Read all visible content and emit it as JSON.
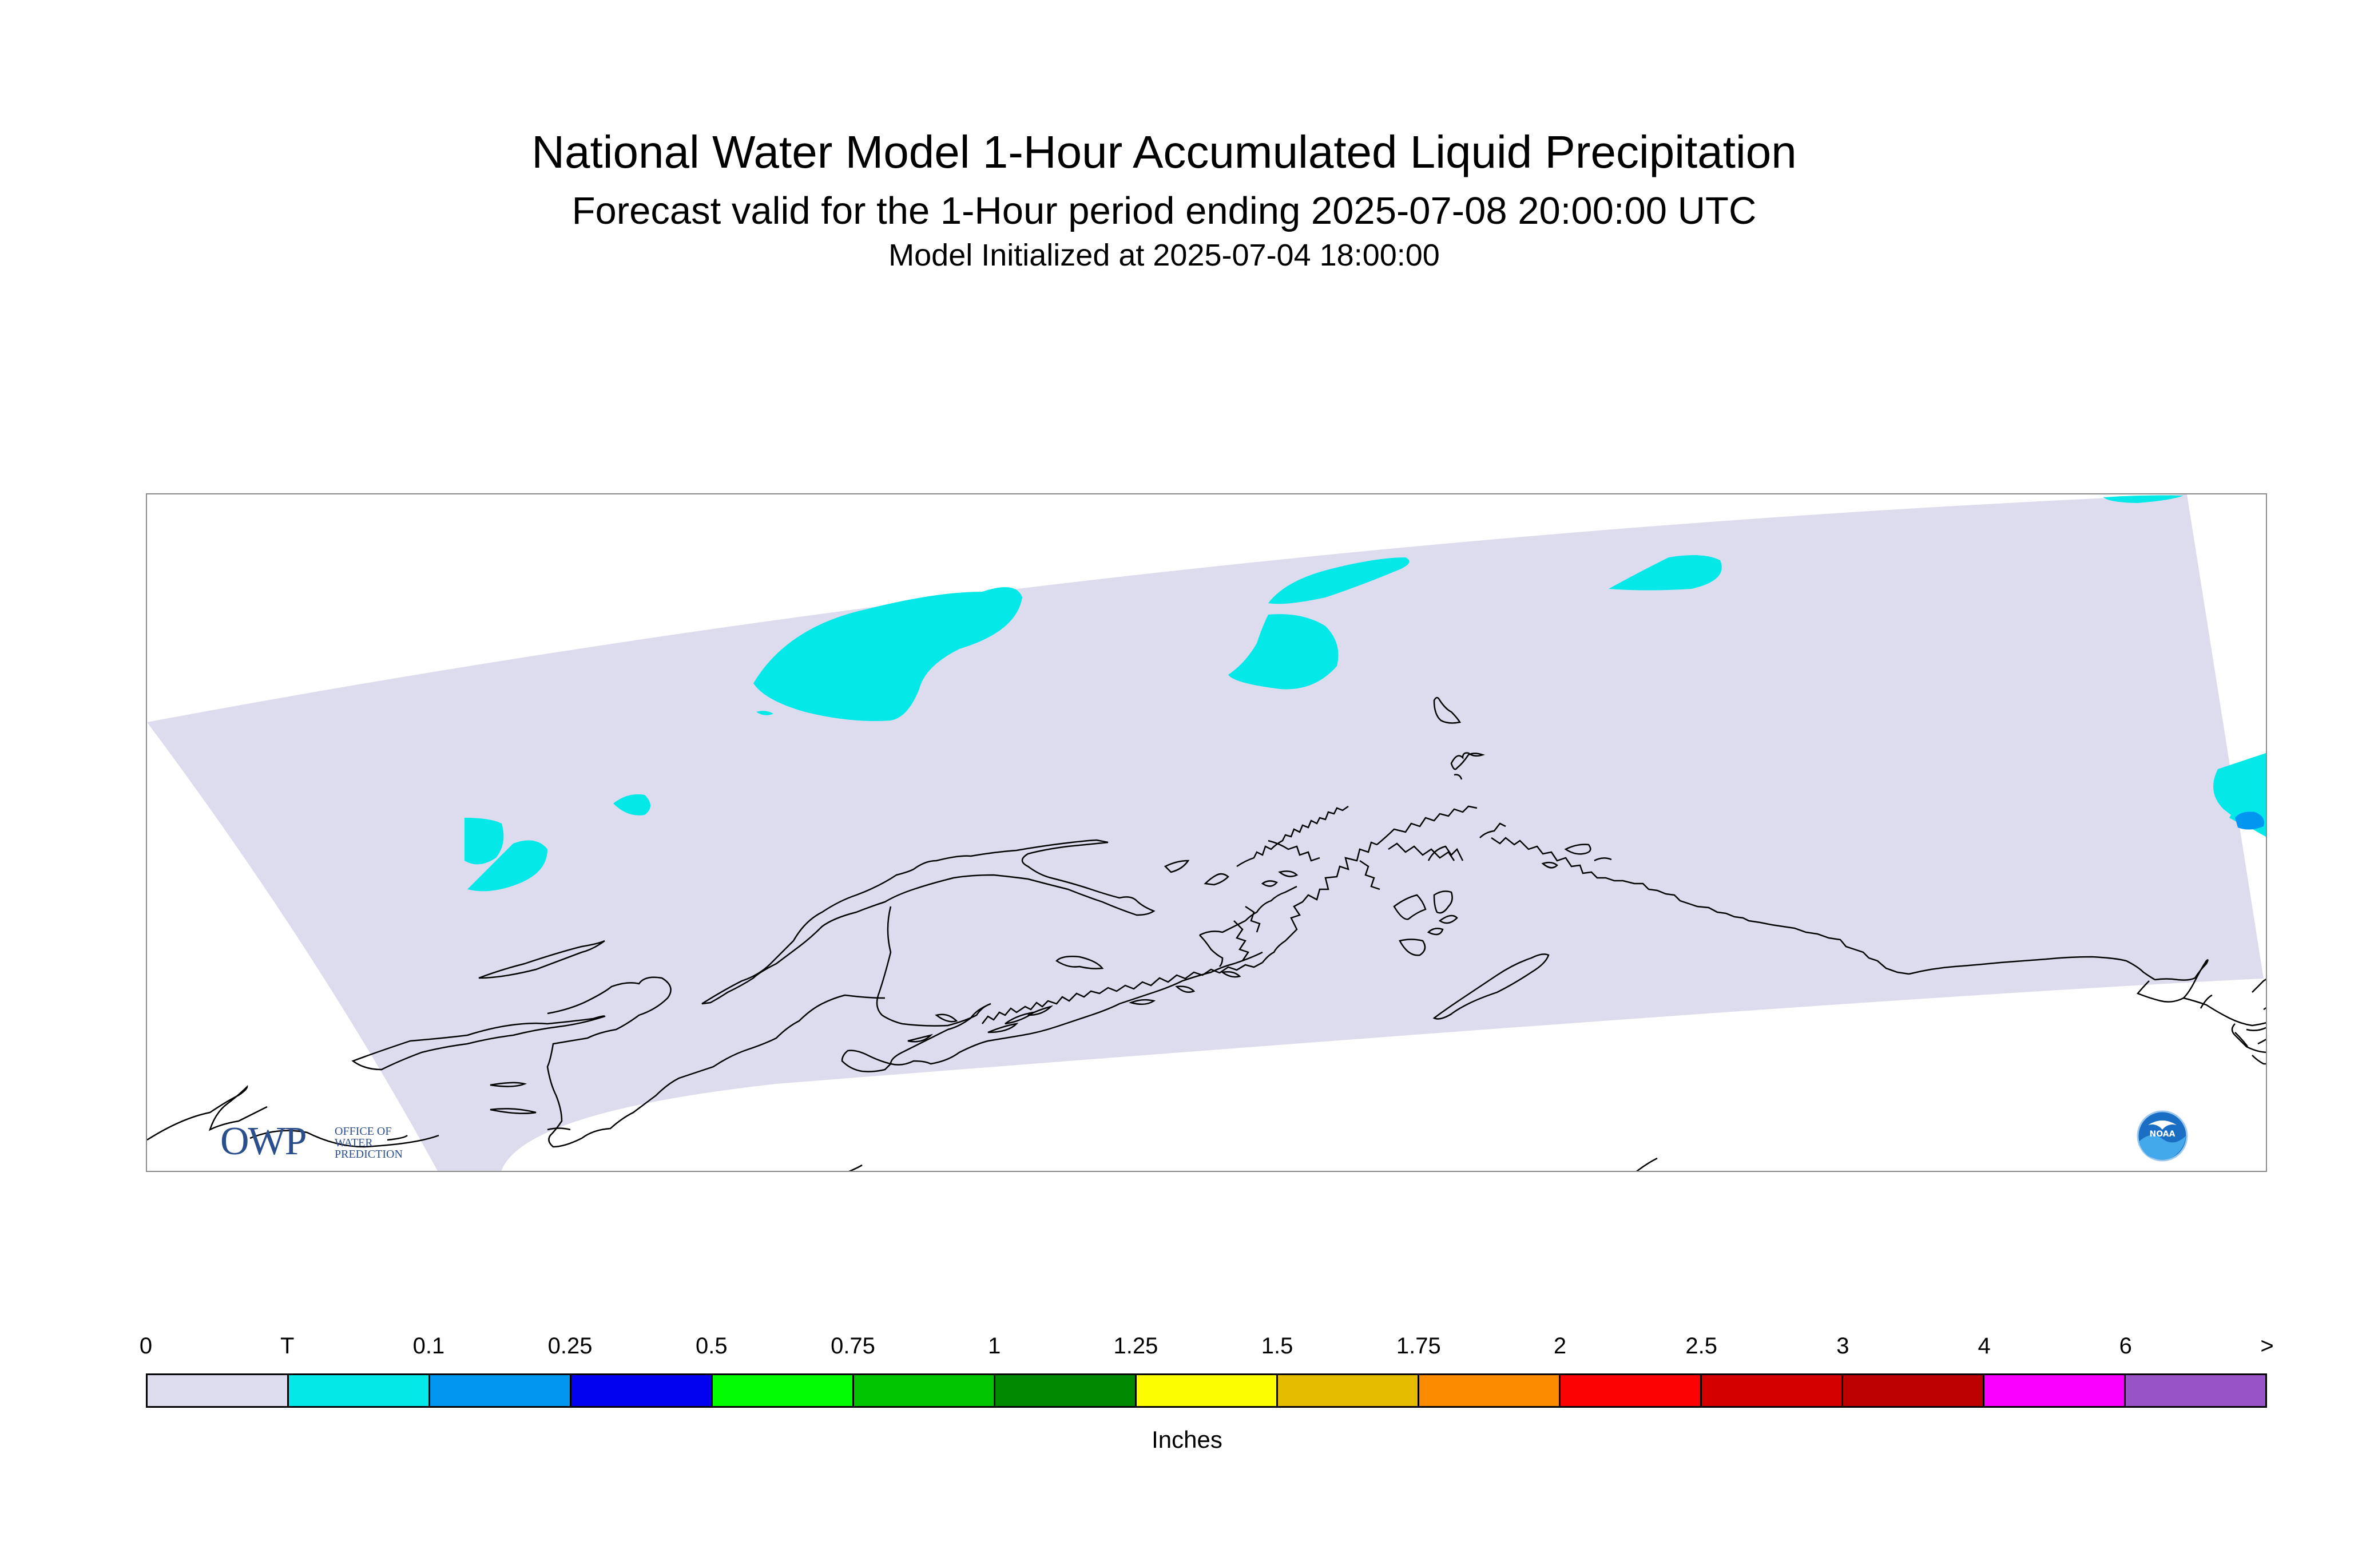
{
  "title": {
    "line1": "National Water Model 1-Hour Accumulated Liquid Precipitation",
    "line2": "Forecast valid for the 1-Hour period ending 2025-07-08 20:00:00 UTC",
    "line3": "Model Initialized at 2025-07-04 18:00:00"
  },
  "legend": {
    "tick_labels": [
      "0",
      "T",
      "0.1",
      "0.25",
      "0.5",
      "0.75",
      "1",
      "1.25",
      "1.5",
      "1.75",
      "2",
      "2.5",
      "3",
      "4",
      "6",
      ">"
    ],
    "colors": [
      "#dcdcee",
      "#05e8e8",
      "#0296f0",
      "#0202f0",
      "#02fd02",
      "#01c501",
      "#018a01",
      "#fdfd02",
      "#e5bc00",
      "#fd8b00",
      "#fd0202",
      "#d40000",
      "#bc0000",
      "#f800fd",
      "#9854c6"
    ],
    "units": "Inches"
  },
  "map": {
    "domain_fill": "#dcdcee",
    "precip_light_color": "#05e8e8",
    "precip_moderate_color": "#0296f0",
    "coastline_color": "#000000"
  },
  "logos": {
    "owp": {
      "letters": "OWP",
      "line1": "OFFICE OF",
      "line2": "WATER",
      "line3": "PREDICTION"
    },
    "noaa": {
      "text": "NOAA"
    }
  }
}
